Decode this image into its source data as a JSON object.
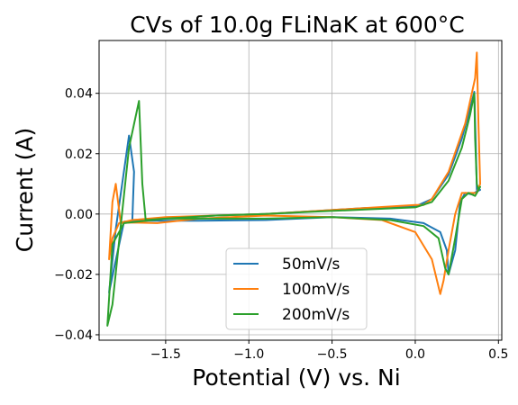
{
  "chart_data": {
    "type": "line",
    "title": "CVs of 10.0g FLiNaK at 600°C",
    "xlabel": "Potential (V) vs. Ni",
    "ylabel": "Current (A)",
    "xlim": [
      -1.9,
      0.52
    ],
    "ylim": [
      -0.0418,
      0.0575
    ],
    "xticks": [
      -1.5,
      -1.0,
      -0.5,
      0.0,
      0.5
    ],
    "xtick_labels": [
      "−1.5",
      "−1.0",
      "−0.5",
      "0.0",
      "0.5"
    ],
    "yticks": [
      -0.04,
      -0.02,
      0.0,
      0.02,
      0.04
    ],
    "ytick_labels": [
      "−0.04",
      "−0.02",
      "0.00",
      "0.02",
      "0.04"
    ],
    "grid": true,
    "legend_position": "lower-center",
    "series": [
      {
        "name": "50mV/s",
        "color": "#1f77b4",
        "x": [
          -0.9,
          -1.3,
          -1.6,
          -1.75,
          -1.81,
          -1.84,
          -1.8,
          -1.72,
          -1.69,
          -1.7,
          -1.5,
          -1.2,
          -0.9,
          -0.6,
          -0.3,
          -0.1,
          0.0,
          0.1,
          0.2,
          0.28,
          0.33,
          0.355,
          0.365,
          0.37,
          0.38,
          0.39,
          0.37,
          0.34,
          0.3,
          0.27,
          0.24,
          0.2,
          0.19,
          0.15,
          0.05,
          -0.15,
          -0.5,
          -0.9
        ],
        "y": [
          -0.002,
          -0.0022,
          -0.0022,
          -0.0025,
          -0.018,
          -0.026,
          -0.005,
          0.026,
          0.014,
          -0.002,
          -0.0015,
          -0.0005,
          0.0,
          0.001,
          0.002,
          0.0022,
          0.0025,
          0.005,
          0.013,
          0.025,
          0.035,
          0.0405,
          0.02,
          0.008,
          0.0085,
          0.008,
          0.0075,
          0.0065,
          0.007,
          0.004,
          -0.012,
          -0.02,
          -0.012,
          -0.006,
          -0.003,
          -0.0015,
          -0.001,
          -0.002
        ]
      },
      {
        "name": "100mV/s",
        "color": "#ff7f0e",
        "x": [
          -0.9,
          -1.3,
          -1.55,
          -1.7,
          -1.77,
          -1.8,
          -1.82,
          -1.84,
          -1.82,
          -1.78,
          -1.7,
          -1.5,
          -1.2,
          -0.9,
          -0.6,
          -0.3,
          0.0,
          0.05,
          0.1,
          0.2,
          0.3,
          0.36,
          0.37,
          0.38,
          0.39,
          0.37,
          0.33,
          0.28,
          0.24,
          0.2,
          0.17,
          0.15,
          0.1,
          0.0,
          -0.2,
          -0.5,
          -0.9
        ],
        "y": [
          -0.0005,
          -0.0015,
          -0.003,
          -0.0028,
          -0.003,
          0.01,
          0.004,
          -0.015,
          -0.008,
          -0.003,
          -0.002,
          -0.001,
          -0.0005,
          0.0,
          0.001,
          0.002,
          0.003,
          0.003,
          0.005,
          0.014,
          0.03,
          0.045,
          0.0535,
          0.03,
          0.01,
          0.007,
          0.007,
          0.007,
          0.0,
          -0.012,
          -0.022,
          -0.0265,
          -0.015,
          -0.006,
          -0.002,
          -0.001,
          -0.0005
        ]
      },
      {
        "name": "200mV/s",
        "color": "#2ca02c",
        "x": [
          -0.9,
          -1.3,
          -1.5,
          -1.62,
          -1.64,
          -1.66,
          -1.72,
          -1.82,
          -1.85,
          -1.82,
          -1.75,
          -1.5,
          -1.2,
          -0.9,
          -0.6,
          -0.3,
          -0.1,
          0.0,
          0.1,
          0.2,
          0.28,
          0.33,
          0.355,
          0.36,
          0.37,
          0.38,
          0.39,
          0.36,
          0.32,
          0.28,
          0.24,
          0.2,
          0.18,
          0.14,
          0.05,
          -0.15,
          -0.5,
          -0.9
        ],
        "y": [
          -0.0015,
          -0.0015,
          -0.0015,
          -0.002,
          0.01,
          0.0375,
          0.022,
          -0.03,
          -0.037,
          -0.01,
          -0.003,
          -0.0015,
          -0.0005,
          0.0,
          0.0008,
          0.0015,
          0.002,
          0.0022,
          0.004,
          0.011,
          0.022,
          0.033,
          0.04,
          0.025,
          0.01,
          0.008,
          0.009,
          0.006,
          0.007,
          0.005,
          -0.008,
          -0.02,
          -0.018,
          -0.008,
          -0.004,
          -0.002,
          -0.001,
          -0.0015
        ]
      }
    ]
  }
}
